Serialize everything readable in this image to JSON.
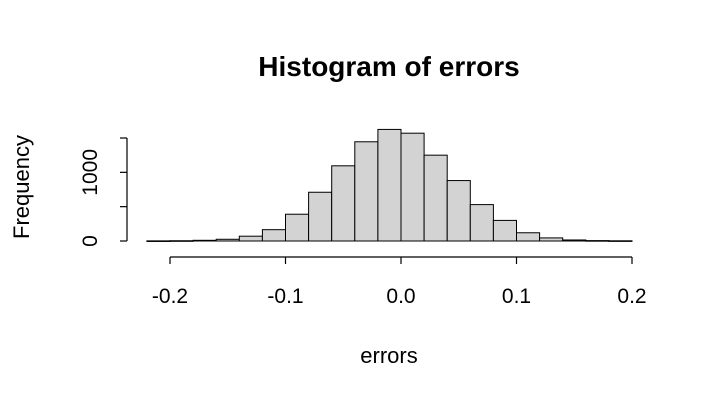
{
  "chart_data": {
    "type": "bar",
    "title": "Histogram of errors",
    "xlabel": "errors",
    "ylabel": "Frequency",
    "bin_width": 0.02,
    "bins": [
      {
        "from": -0.22,
        "to": -0.2,
        "count": 2
      },
      {
        "from": -0.2,
        "to": -0.18,
        "count": 4
      },
      {
        "from": -0.18,
        "to": -0.16,
        "count": 10
      },
      {
        "from": -0.16,
        "to": -0.14,
        "count": 25
      },
      {
        "from": -0.14,
        "to": -0.12,
        "count": 70
      },
      {
        "from": -0.12,
        "to": -0.1,
        "count": 165
      },
      {
        "from": -0.1,
        "to": -0.08,
        "count": 390
      },
      {
        "from": -0.08,
        "to": -0.06,
        "count": 710
      },
      {
        "from": -0.06,
        "to": -0.04,
        "count": 1095
      },
      {
        "from": -0.04,
        "to": -0.02,
        "count": 1445
      },
      {
        "from": -0.02,
        "to": 0.0,
        "count": 1625
      },
      {
        "from": 0.0,
        "to": 0.02,
        "count": 1570
      },
      {
        "from": 0.02,
        "to": 0.04,
        "count": 1250
      },
      {
        "from": 0.04,
        "to": 0.06,
        "count": 880
      },
      {
        "from": 0.06,
        "to": 0.08,
        "count": 530
      },
      {
        "from": 0.08,
        "to": 0.1,
        "count": 300
      },
      {
        "from": 0.1,
        "to": 0.12,
        "count": 120
      },
      {
        "from": 0.12,
        "to": 0.14,
        "count": 45
      },
      {
        "from": 0.14,
        "to": 0.16,
        "count": 15
      },
      {
        "from": 0.16,
        "to": 0.18,
        "count": 6
      },
      {
        "from": 0.18,
        "to": 0.2,
        "count": 3
      }
    ],
    "x_ticks": [
      -0.2,
      -0.1,
      0.0,
      0.1,
      0.2
    ],
    "x_tick_labels": [
      "-0.2",
      "-0.1",
      "0.0",
      "0.1",
      "0.2"
    ],
    "y_ticks": [
      0,
      500,
      1000,
      1500
    ],
    "y_tick_labels": [
      "0",
      "",
      "1000",
      ""
    ],
    "xlim": [
      -0.2,
      0.2
    ],
    "ylim": [
      0,
      1500
    ],
    "grid": false,
    "legend": "none",
    "bar_color": "#d3d3d3"
  }
}
